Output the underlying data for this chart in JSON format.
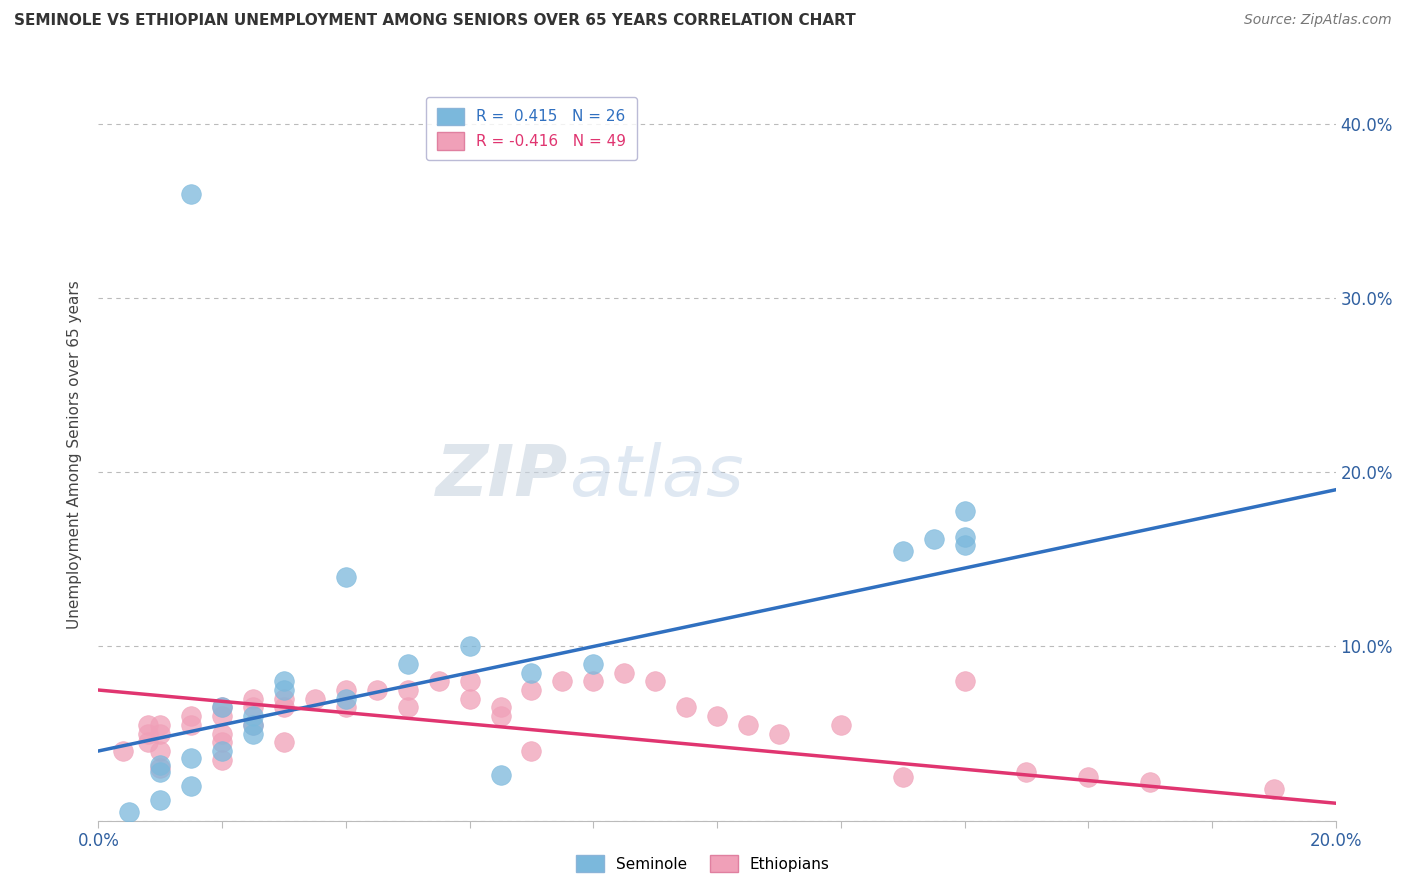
{
  "title": "SEMINOLE VS ETHIOPIAN UNEMPLOYMENT AMONG SENIORS OVER 65 YEARS CORRELATION CHART",
  "source": "Source: ZipAtlas.com",
  "ylabel": "Unemployment Among Seniors over 65 years",
  "xlim": [
    0.0,
    0.2
  ],
  "ylim": [
    0.0,
    0.42
  ],
  "y_ticks": [
    0.0,
    0.1,
    0.2,
    0.3,
    0.4
  ],
  "seminole_R": 0.415,
  "seminole_N": 26,
  "ethiopian_R": -0.416,
  "ethiopian_N": 49,
  "seminole_color": "#7bb8dc",
  "ethiopian_color": "#f0a0b8",
  "seminole_line_color": "#3070c0",
  "ethiopian_line_color": "#e03570",
  "watermark_zip": "ZIP",
  "watermark_atlas": "atlas",
  "seminole_x": [
    0.015,
    0.01,
    0.01,
    0.02,
    0.025,
    0.025,
    0.025,
    0.02,
    0.015,
    0.03,
    0.03,
    0.04,
    0.04,
    0.05,
    0.06,
    0.07,
    0.065,
    0.08,
    0.13,
    0.135,
    0.14,
    0.14,
    0.14,
    0.015,
    0.01,
    0.005
  ],
  "seminole_y": [
    0.036,
    0.032,
    0.028,
    0.065,
    0.06,
    0.055,
    0.05,
    0.04,
    0.02,
    0.08,
    0.075,
    0.07,
    0.14,
    0.09,
    0.1,
    0.085,
    0.026,
    0.09,
    0.155,
    0.162,
    0.158,
    0.163,
    0.178,
    0.36,
    0.012,
    0.005
  ],
  "ethiopian_x": [
    0.004,
    0.008,
    0.008,
    0.008,
    0.01,
    0.01,
    0.01,
    0.01,
    0.015,
    0.015,
    0.02,
    0.02,
    0.02,
    0.02,
    0.02,
    0.025,
    0.025,
    0.025,
    0.03,
    0.03,
    0.03,
    0.035,
    0.04,
    0.04,
    0.045,
    0.05,
    0.05,
    0.055,
    0.06,
    0.06,
    0.065,
    0.065,
    0.07,
    0.07,
    0.075,
    0.08,
    0.085,
    0.09,
    0.095,
    0.1,
    0.105,
    0.11,
    0.12,
    0.13,
    0.14,
    0.15,
    0.16,
    0.17,
    0.19
  ],
  "ethiopian_y": [
    0.04,
    0.055,
    0.05,
    0.045,
    0.055,
    0.05,
    0.04,
    0.03,
    0.06,
    0.055,
    0.065,
    0.06,
    0.05,
    0.045,
    0.035,
    0.07,
    0.065,
    0.055,
    0.07,
    0.065,
    0.045,
    0.07,
    0.075,
    0.065,
    0.075,
    0.075,
    0.065,
    0.08,
    0.08,
    0.07,
    0.065,
    0.06,
    0.075,
    0.04,
    0.08,
    0.08,
    0.085,
    0.08,
    0.065,
    0.06,
    0.055,
    0.05,
    0.055,
    0.025,
    0.08,
    0.028,
    0.025,
    0.022,
    0.018
  ],
  "seminole_trend_x": [
    0.0,
    0.2
  ],
  "seminole_trend_y": [
    0.04,
    0.19
  ],
  "ethiopian_trend_x": [
    0.0,
    0.2
  ],
  "ethiopian_trend_y": [
    0.075,
    0.01
  ]
}
